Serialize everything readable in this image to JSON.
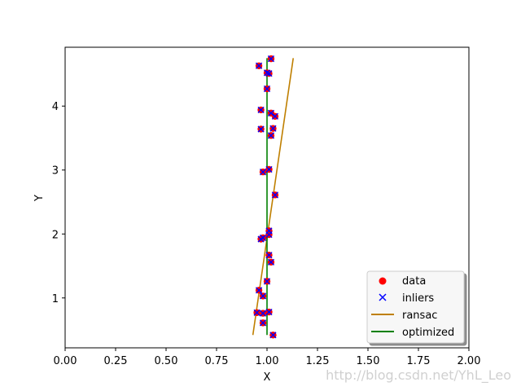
{
  "chart_data": {
    "type": "scatter",
    "xlabel": "X",
    "ylabel": "Y",
    "xlim": [
      0.0,
      2.0
    ],
    "ylim": [
      0.22,
      4.92
    ],
    "x_ticks": [
      0.0,
      0.25,
      0.5,
      0.75,
      1.0,
      1.25,
      1.5,
      1.75,
      2.0
    ],
    "x_tick_labels": [
      "0.00",
      "0.25",
      "0.50",
      "0.75",
      "1.00",
      "1.25",
      "1.50",
      "1.75",
      "2.00"
    ],
    "y_ticks": [
      1,
      2,
      3,
      4
    ],
    "y_tick_labels": [
      "1",
      "2",
      "3",
      "4"
    ],
    "grid": false,
    "legend_position": "lower-right",
    "points": [
      [
        1.02,
        4.74
      ],
      [
        0.96,
        4.63
      ],
      [
        1.0,
        4.52
      ],
      [
        1.01,
        4.51
      ],
      [
        1.0,
        4.27
      ],
      [
        0.97,
        3.94
      ],
      [
        1.02,
        3.89
      ],
      [
        1.04,
        3.84
      ],
      [
        0.97,
        3.64
      ],
      [
        1.03,
        3.65
      ],
      [
        1.02,
        3.54
      ],
      [
        0.98,
        2.97
      ],
      [
        1.01,
        3.01
      ],
      [
        1.04,
        2.61
      ],
      [
        1.01,
        2.05
      ],
      [
        1.01,
        1.99
      ],
      [
        0.98,
        1.94
      ],
      [
        0.97,
        1.92
      ],
      [
        1.01,
        1.67
      ],
      [
        1.02,
        1.56
      ],
      [
        1.0,
        1.26
      ],
      [
        0.96,
        1.12
      ],
      [
        0.98,
        1.03
      ],
      [
        0.95,
        0.77
      ],
      [
        0.98,
        0.76
      ],
      [
        1.01,
        0.78
      ],
      [
        0.98,
        0.61
      ],
      [
        1.03,
        0.42
      ]
    ],
    "series": [
      {
        "name": "data",
        "marker": "circle",
        "color": "#ff0000"
      },
      {
        "name": "inliers",
        "marker": "x",
        "color": "#0000ff"
      },
      {
        "name": "ransac",
        "line": [
          [
            0.93,
            0.42
          ],
          [
            1.13,
            4.75
          ]
        ],
        "color": "#bf7f00"
      },
      {
        "name": "optimized",
        "line": [
          [
            1.0,
            0.42
          ],
          [
            1.0,
            4.75
          ]
        ],
        "color": "#008000"
      }
    ]
  },
  "watermark": "http://blog.csdn.net/YhL_Leo"
}
